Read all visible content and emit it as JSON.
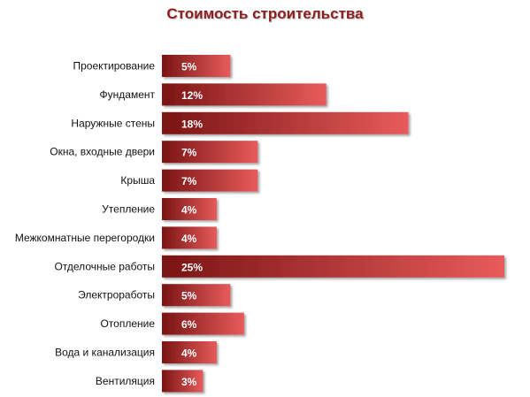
{
  "chart_data": {
    "type": "bar",
    "orientation": "horizontal",
    "title": "Стоимость строительства",
    "categories": [
      "Проектирование",
      "Фундамент",
      "Наружные стены",
      "Окна, входные двери",
      "Крыша",
      "Утепление",
      "Межкомнатные перегородки",
      "Отделочные работы",
      "Электроработы",
      "Отопление",
      "Вода и канализация",
      "Вентиляция"
    ],
    "values": [
      5,
      12,
      18,
      7,
      7,
      4,
      4,
      25,
      5,
      6,
      4,
      3
    ],
    "value_labels": [
      "5%",
      "12%",
      "18%",
      "7%",
      "7%",
      "4%",
      "4%",
      "25%",
      "5%",
      "6%",
      "4%",
      "3%"
    ],
    "unit": "%",
    "xlim": [
      0,
      25
    ],
    "grid": false,
    "legend": "none",
    "colors": {
      "bar_dark": "#7a1414",
      "bar_light": "#e85b5b",
      "title": "#8b1e1e"
    }
  }
}
